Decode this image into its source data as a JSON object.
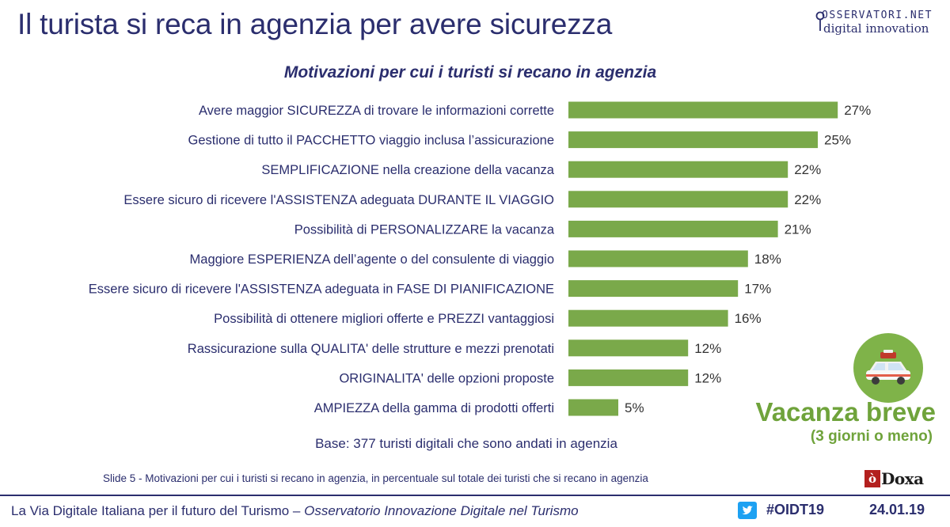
{
  "header": {
    "title": "Il turista si reca in agenzia per avere sicurezza",
    "logo": {
      "line1": "OSSERVATORI.NET",
      "line2": "digital innovation"
    }
  },
  "chart_data": {
    "type": "bar",
    "orientation": "horizontal",
    "title": "Motivazioni per cui i turisti si recano in agenzia",
    "categories": [
      "Avere maggior SICUREZZA di trovare le informazioni corrette",
      "Gestione di tutto il PACCHETTO viaggio inclusa l’assicurazione",
      "SEMPLIFICAZIONE nella creazione della vacanza",
      "Essere sicuro di ricevere l'ASSISTENZA adeguata DURANTE IL VIAGGIO",
      "Possibilità di PERSONALIZZARE la vacanza",
      "Maggiore ESPERIENZA dell’agente o del consulente di viaggio",
      "Essere sicuro di ricevere l'ASSISTENZA adeguata in FASE DI PIANIFICAZIONE",
      "Possibilità di ottenere migliori offerte e PREZZI vantaggiosi",
      "Rassicurazione sulla QUALITA' delle strutture e mezzi prenotati",
      "ORIGINALITA' delle opzioni proposte",
      "AMPIEZZA della gamma di prodotti offerti"
    ],
    "values": [
      27,
      25,
      22,
      22,
      21,
      18,
      17,
      16,
      12,
      12,
      5
    ],
    "value_labels": [
      "27%",
      "25%",
      "22%",
      "22%",
      "21%",
      "18%",
      "17%",
      "16%",
      "12%",
      "12%",
      "5%"
    ],
    "bar_color": "#7aa94a",
    "grid": false,
    "legend": "none"
  },
  "base_note": "Base: 377 turisti digitali che sono andati in agenzia",
  "badge": {
    "title": "Vacanza breve",
    "subtitle": "(3 giorni o meno)",
    "icon": "car-with-luggage-icon",
    "color": "#7fb349"
  },
  "slide_note": "Slide 5 - Motivazioni per cui i turisti si recano in agenzia, in percentuale sul totale dei turisti che si recano in agenzia",
  "doxa": {
    "mark": "ò",
    "name": "Doxa"
  },
  "footer": {
    "left": "La Via Digitale Italiana per il futuro del Turismo – ",
    "left_italic": "Osservatorio Innovazione Digitale nel Turismo",
    "hashtag": "#OIDT19",
    "date": "24.01.19"
  },
  "colors": {
    "text_primary": "#2b2e6e",
    "accent_green": "#6fa33b",
    "doxa_red": "#b3201e"
  }
}
